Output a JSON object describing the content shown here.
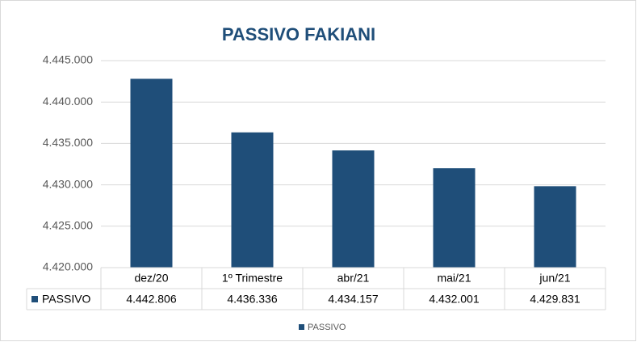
{
  "chart_data": {
    "type": "bar",
    "title": "PASSIVO FAKIANI",
    "categories": [
      "dez/20",
      "1º Trimestre",
      "abr/21",
      "mai/21",
      "jun/21"
    ],
    "series": [
      {
        "name": "PASSIVO",
        "color": "#1f4e79",
        "values": [
          4442806,
          4436336,
          4434157,
          4432001,
          4429831
        ],
        "value_labels": [
          "4.442.806",
          "4.436.336",
          "4.434.157",
          "4.432.001",
          "4.429.831"
        ]
      }
    ],
    "ylim": [
      4420000,
      4445000
    ],
    "yticks": [
      {
        "value": 4420000,
        "label": "4.420.000"
      },
      {
        "value": 4425000,
        "label": "4.425.000"
      },
      {
        "value": 4430000,
        "label": "4.430.000"
      },
      {
        "value": 4435000,
        "label": "4.435.000"
      },
      {
        "value": 4440000,
        "label": "4.440.000"
      },
      {
        "value": 4445000,
        "label": "4.445.000"
      }
    ],
    "grid": true,
    "legend": "bottom"
  }
}
